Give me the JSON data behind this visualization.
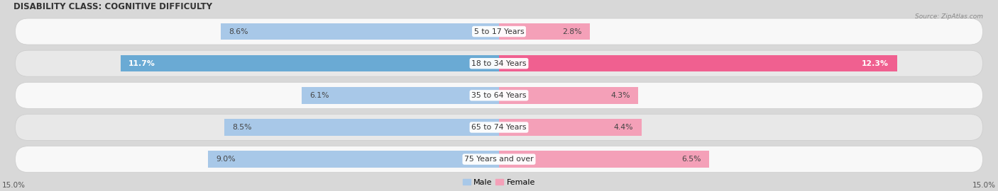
{
  "title": "DISABILITY CLASS: COGNITIVE DIFFICULTY",
  "source": "Source: ZipAtlas.com",
  "categories": [
    "5 to 17 Years",
    "18 to 34 Years",
    "35 to 64 Years",
    "65 to 74 Years",
    "75 Years and over"
  ],
  "male_values": [
    8.6,
    11.7,
    6.1,
    8.5,
    9.0
  ],
  "female_values": [
    2.8,
    12.3,
    4.3,
    4.4,
    6.5
  ],
  "male_color_light": "#a8c8e8",
  "male_color_dark": "#6aaad4",
  "female_color_light": "#f4a0b8",
  "female_color_dark": "#f06090",
  "xlim": 15.0,
  "bar_height": 0.52,
  "page_bg": "#d8d8d8",
  "row_bg_light": "#f8f8f8",
  "row_bg_dark": "#e8e8e8",
  "title_fontsize": 8.5,
  "label_fontsize": 7.8,
  "tick_fontsize": 7.5,
  "legend_fontsize": 8,
  "source_fontsize": 6.5
}
